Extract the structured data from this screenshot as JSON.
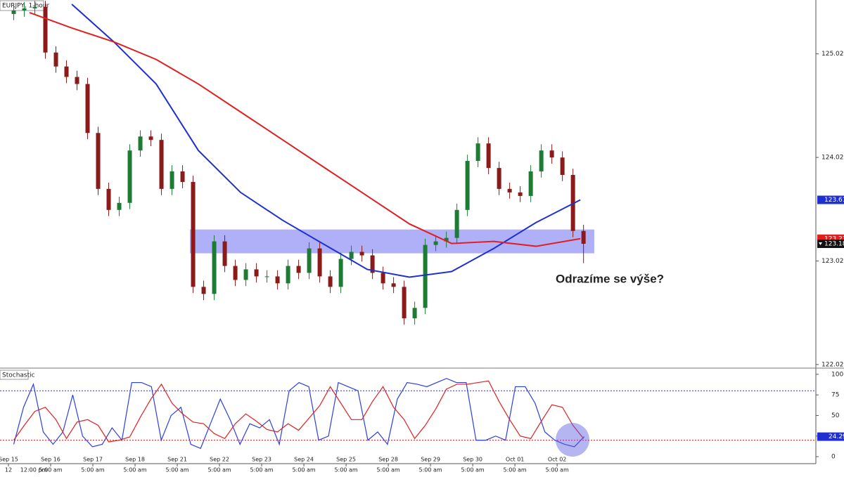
{
  "chart_data": {
    "type": "candlestick",
    "title": "EURJPY, 1-hour",
    "annotation": "Odrazíme se výše?",
    "x": [
      0.125,
      0.375,
      0.625,
      0.875,
      1.125,
      1.375,
      1.625,
      1.875,
      2.125,
      2.375,
      2.625,
      2.875,
      3.125,
      3.375,
      3.625,
      3.875,
      4.125,
      4.375,
      4.625,
      4.875,
      5.125,
      5.375,
      5.625,
      5.875,
      6.125,
      6.375,
      6.625,
      6.875,
      7.125,
      7.375,
      7.625,
      7.875,
      8.125,
      8.375,
      8.625,
      8.875,
      9.125,
      9.375,
      9.625,
      9.875,
      10.125,
      10.375,
      10.625,
      10.875,
      11.125,
      11.375,
      11.625,
      11.875,
      12.125,
      12.375,
      12.625,
      12.875,
      13.125,
      13.375,
      13.625
    ],
    "open": [
      125.406,
      125.44,
      125.46,
      125.473,
      125.034,
      124.899,
      124.798,
      124.73,
      124.257,
      123.717,
      123.514,
      123.582,
      124.088,
      124.223,
      124.19,
      123.717,
      123.886,
      123.784,
      122.771,
      122.703,
      123.21,
      122.973,
      122.838,
      122.94,
      122.872,
      122.872,
      122.805,
      122.973,
      122.906,
      123.142,
      122.872,
      122.771,
      123.041,
      123.109,
      123.075,
      122.906,
      122.805,
      122.771,
      122.467,
      122.568,
      123.176,
      123.21,
      123.244,
      123.514,
      123.987,
      124.156,
      123.919,
      123.717,
      123.683,
      123.649,
      123.886,
      124.088,
      124.02,
      123.852,
      123.311
    ],
    "high": [
      125.5,
      125.52,
      125.533,
      125.533,
      125.094,
      124.959,
      124.858,
      124.79,
      124.317,
      123.777,
      123.642,
      124.148,
      124.283,
      124.283,
      124.25,
      123.946,
      123.946,
      123.844,
      122.831,
      123.27,
      123.27,
      123.033,
      123.0,
      123.0,
      122.932,
      122.932,
      123.033,
      123.033,
      123.202,
      123.202,
      122.932,
      123.101,
      123.169,
      123.169,
      123.135,
      122.966,
      122.865,
      122.831,
      122.628,
      123.236,
      123.27,
      123.304,
      123.574,
      124.047,
      124.216,
      124.216,
      123.979,
      123.777,
      123.743,
      123.946,
      124.148,
      124.148,
      124.08,
      123.912,
      123.371
    ],
    "low": [
      125.346,
      125.38,
      125.4,
      124.974,
      124.839,
      124.738,
      124.67,
      124.197,
      123.657,
      123.454,
      123.454,
      123.522,
      124.028,
      124.13,
      123.657,
      123.657,
      123.724,
      122.711,
      122.643,
      122.643,
      122.913,
      122.778,
      122.778,
      122.812,
      122.812,
      122.745,
      122.745,
      122.846,
      122.846,
      122.812,
      122.711,
      122.711,
      122.981,
      123.015,
      122.846,
      122.745,
      122.711,
      122.407,
      122.407,
      122.508,
      123.116,
      123.15,
      123.184,
      123.454,
      123.927,
      123.859,
      123.657,
      123.623,
      123.589,
      123.589,
      123.826,
      123.96,
      123.792,
      123.251,
      123.0
    ],
    "close": [
      125.44,
      125.46,
      125.473,
      125.034,
      124.899,
      124.798,
      124.73,
      124.257,
      123.717,
      123.514,
      123.582,
      124.088,
      124.223,
      124.19,
      123.717,
      123.886,
      123.784,
      122.771,
      122.703,
      123.21,
      122.973,
      122.838,
      122.94,
      122.872,
      122.872,
      122.805,
      122.973,
      122.906,
      123.142,
      122.872,
      122.771,
      123.041,
      123.109,
      123.075,
      122.906,
      122.805,
      122.771,
      122.467,
      122.568,
      123.176,
      123.21,
      123.244,
      123.514,
      123.987,
      124.156,
      123.919,
      123.717,
      123.683,
      123.649,
      123.886,
      124.088,
      124.02,
      123.852,
      123.311,
      123.187
    ],
    "up_color": "#1e7b34",
    "down_color": "#8b1a1a",
    "moving_averages": [
      {
        "color": "#1f2fd1",
        "x": [
          1.5,
          2.5,
          3.5,
          4.5,
          5.5,
          6.5,
          7.5,
          8.5,
          9.5,
          10.5,
          11.5,
          12.5,
          13.55
        ],
        "values": [
          125.5,
          125.136,
          124.73,
          124.088,
          123.683,
          123.413,
          123.176,
          122.94,
          122.865,
          122.919,
          123.142,
          123.392,
          123.611
        ]
      },
      {
        "color": "#e02020",
        "x": [
          0.5,
          1.5,
          2.5,
          3.5,
          4.5,
          5.5,
          6.5,
          7.5,
          8.5,
          9.5,
          10.5,
          11.5,
          12.5,
          13.55
        ],
        "values": [
          125.419,
          125.271,
          125.136,
          124.967,
          124.73,
          124.46,
          124.19,
          123.919,
          123.649,
          123.379,
          123.19,
          123.21,
          123.163,
          123.236
        ]
      }
    ],
    "zone": {
      "x": [
        4.3,
        13.88
      ],
      "y": [
        123.095,
        123.325
      ],
      "color": "#8e8ef7"
    },
    "markers": [
      {
        "value": 123.611,
        "color": "#1f2fd1"
      },
      {
        "value": 123.236,
        "color": "#e02020"
      },
      {
        "value": 123.187,
        "color": "#111111"
      }
    ],
    "xlim": [
      -0.2,
      19.13
    ],
    "ylim": [
      122.0,
      125.541
    ],
    "yticks": [
      122.021,
      123.021,
      124.021,
      125.021
    ],
    "xticks": [
      {
        "value": 0,
        "label": "Sep 15"
      },
      {
        "value": 1,
        "label": "Sep 16"
      },
      {
        "value": 2,
        "label": "Sep 17"
      },
      {
        "value": 3,
        "label": "Sep 18"
      },
      {
        "value": 4,
        "label": "Sep 21"
      },
      {
        "value": 5,
        "label": "Sep 22"
      },
      {
        "value": 6,
        "label": "Sep 23"
      },
      {
        "value": 7,
        "label": "Sep 24"
      },
      {
        "value": 8,
        "label": "Sep 25"
      },
      {
        "value": 9,
        "label": "Sep 28"
      },
      {
        "value": 10,
        "label": "Sep 29"
      },
      {
        "value": 11,
        "label": "Sep 30"
      },
      {
        "value": 12,
        "label": "Oct 01"
      },
      {
        "value": 13,
        "label": "Oct 02"
      }
    ],
    "xticks_time": [
      {
        "value": 0,
        "label": "12"
      },
      {
        "value": 0.6,
        "label": "12:00 pm"
      },
      {
        "value": 1,
        "label": "5:00 am"
      },
      {
        "value": 2,
        "label": "5:00 am"
      },
      {
        "value": 3,
        "label": "5:00 am"
      },
      {
        "value": 4,
        "label": "5:00 am"
      },
      {
        "value": 5,
        "label": "5:00 am"
      },
      {
        "value": 6,
        "label": "5:00 am"
      },
      {
        "value": 7,
        "label": "5:00 am"
      },
      {
        "value": 8,
        "label": "5:00 am"
      },
      {
        "value": 9,
        "label": "5:00 am"
      },
      {
        "value": 10,
        "label": "5:00 am"
      },
      {
        "value": 11,
        "label": "5:00 am"
      },
      {
        "value": 12,
        "label": "5:00 am"
      },
      {
        "value": 13,
        "label": "5:00 am"
      }
    ],
    "stochastic": {
      "title": "Stochastic",
      "ylim": [
        -8.5,
        105
      ],
      "yticks": [
        0,
        25,
        50,
        75,
        100
      ],
      "levels": [
        {
          "value": 80,
          "color": "#3a3aa8"
        },
        {
          "value": 20,
          "color": "#e02020"
        }
      ],
      "series": [
        {
          "color": "#2a3fe0",
          "values": [
            15,
            60,
            88,
            30,
            15,
            30,
            75,
            25,
            12,
            15,
            35,
            20,
            90,
            90,
            85,
            20,
            50,
            60,
            15,
            10,
            40,
            70,
            45,
            15,
            40,
            35,
            45,
            15,
            80,
            90,
            85,
            20,
            25,
            90,
            85,
            80,
            20,
            30,
            15,
            70,
            90,
            88,
            85,
            90,
            95,
            90,
            90,
            20,
            20,
            25,
            20,
            85,
            85,
            65,
            30,
            20,
            15,
            12,
            24.29
          ]
        },
        {
          "color": "#e02020",
          "values": [
            20,
            38,
            55,
            60,
            45,
            22,
            42,
            45,
            38,
            18,
            20,
            24,
            48,
            70,
            88,
            65,
            52,
            42,
            40,
            28,
            22,
            40,
            52,
            43,
            33,
            30,
            40,
            32,
            47,
            62,
            85,
            65,
            45,
            45,
            67,
            85,
            60,
            45,
            22,
            38,
            58,
            82,
            88,
            88,
            90,
            92,
            67,
            45,
            25,
            22,
            43,
            63,
            60,
            38,
            22
          ]
        }
      ],
      "marker": {
        "value": 24.29,
        "color": "#1f2fd1"
      }
    }
  }
}
